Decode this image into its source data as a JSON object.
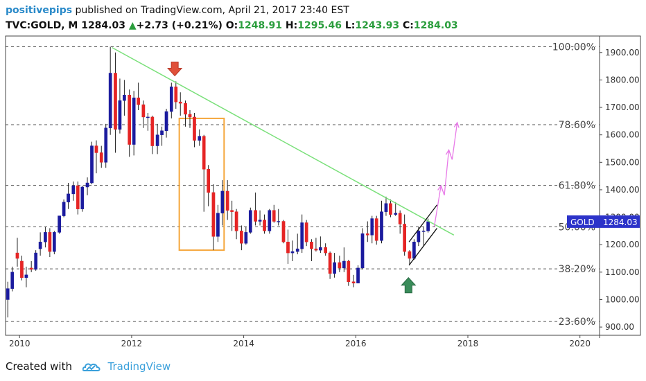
{
  "header": {
    "author": "positivepips",
    "published_text": "published on TradingView.com, April 21, 2017 23:40 EST",
    "symbol": "TVC:GOLD, M",
    "last": "1284.03",
    "change": "+2.73 (+0.21%)",
    "open_label": "O:",
    "open_value": "1248.91",
    "high_label": "H:",
    "high_value": "1295.46",
    "low_label": "L:",
    "low_value": "1243.93",
    "close_label": "C:",
    "close_value": "1284.03"
  },
  "footer": {
    "created_with": "Created with",
    "brand": "TradingView"
  },
  "colors": {
    "up": "#1b1b9e",
    "down": "#e52424",
    "trend": "#7ae07a",
    "box": "#f5a63a",
    "arrow_down": "#e0503a",
    "arrow_up": "#3a8c5a",
    "projection": "#e87ae8",
    "price_tag": "#2c33c9"
  },
  "chart_data": {
    "type": "candlestick",
    "x_start_year": 2009.75,
    "x_tick_labels": [
      "2010",
      "2012",
      "2014",
      "2016",
      "2018",
      "2020"
    ],
    "x_ticks": [
      2010,
      2012,
      2014,
      2016,
      2018,
      2020
    ],
    "y_tick_labels": [
      "900.00",
      "1000.00",
      "1100.00",
      "1200.00",
      "1300.00",
      "1400.00",
      "1500.00",
      "1600.00",
      "1700.00",
      "1800.00",
      "1900.00"
    ],
    "y_ticks": [
      900,
      1000,
      1100,
      1200,
      1300,
      1400,
      1500,
      1600,
      1700,
      1800,
      1900
    ],
    "ylim": [
      870,
      1960
    ],
    "xlim": [
      2009.75,
      2020.35
    ],
    "price_tag": {
      "label": "GOLD",
      "value": "1284.03",
      "price": 1284.03
    },
    "fib_levels": [
      {
        "label": "100.00%",
        "price": 1921
      },
      {
        "label": "78.60%",
        "price": 1637
      },
      {
        "label": "61.80%",
        "price": 1416
      },
      {
        "label": "50.00%",
        "price": 1265
      },
      {
        "label": "38.20%",
        "price": 1112
      },
      {
        "label": "23.60%",
        "price": 920
      }
    ],
    "candles": [
      {
        "t": 2009.79,
        "o": 1000,
        "h": 1065,
        "l": 935,
        "c": 1040
      },
      {
        "t": 2009.87,
        "o": 1040,
        "h": 1120,
        "l": 1030,
        "c": 1100
      },
      {
        "t": 2009.96,
        "o": 1170,
        "h": 1225,
        "l": 1120,
        "c": 1150
      },
      {
        "t": 2010.04,
        "o": 1140,
        "h": 1160,
        "l": 1070,
        "c": 1080
      },
      {
        "t": 2010.12,
        "o": 1080,
        "h": 1120,
        "l": 1045,
        "c": 1090
      },
      {
        "t": 2010.21,
        "o": 1115,
        "h": 1140,
        "l": 1100,
        "c": 1110
      },
      {
        "t": 2010.29,
        "o": 1110,
        "h": 1180,
        "l": 1105,
        "c": 1170
      },
      {
        "t": 2010.37,
        "o": 1185,
        "h": 1245,
        "l": 1160,
        "c": 1210
      },
      {
        "t": 2010.46,
        "o": 1210,
        "h": 1265,
        "l": 1190,
        "c": 1245
      },
      {
        "t": 2010.54,
        "o": 1245,
        "h": 1260,
        "l": 1155,
        "c": 1175
      },
      {
        "t": 2010.62,
        "o": 1175,
        "h": 1250,
        "l": 1165,
        "c": 1245
      },
      {
        "t": 2010.71,
        "o": 1245,
        "h": 1305,
        "l": 1240,
        "c": 1305
      },
      {
        "t": 2010.79,
        "o": 1305,
        "h": 1365,
        "l": 1300,
        "c": 1355
      },
      {
        "t": 2010.87,
        "o": 1355,
        "h": 1425,
        "l": 1330,
        "c": 1385
      },
      {
        "t": 2010.96,
        "o": 1385,
        "h": 1430,
        "l": 1360,
        "c": 1415
      },
      {
        "t": 2011.04,
        "o": 1415,
        "h": 1430,
        "l": 1310,
        "c": 1330
      },
      {
        "t": 2011.12,
        "o": 1330,
        "h": 1415,
        "l": 1320,
        "c": 1410
      },
      {
        "t": 2011.21,
        "o": 1410,
        "h": 1445,
        "l": 1380,
        "c": 1425
      },
      {
        "t": 2011.29,
        "o": 1425,
        "h": 1575,
        "l": 1420,
        "c": 1560
      },
      {
        "t": 2011.37,
        "o": 1560,
        "h": 1580,
        "l": 1460,
        "c": 1535
      },
      {
        "t": 2011.46,
        "o": 1535,
        "h": 1560,
        "l": 1480,
        "c": 1500
      },
      {
        "t": 2011.54,
        "o": 1500,
        "h": 1640,
        "l": 1480,
        "c": 1625
      },
      {
        "t": 2011.62,
        "o": 1625,
        "h": 1921,
        "l": 1600,
        "c": 1825
      },
      {
        "t": 2011.71,
        "o": 1825,
        "h": 1900,
        "l": 1535,
        "c": 1620
      },
      {
        "t": 2011.79,
        "o": 1620,
        "h": 1805,
        "l": 1605,
        "c": 1725
      },
      {
        "t": 2011.87,
        "o": 1725,
        "h": 1800,
        "l": 1670,
        "c": 1745
      },
      {
        "t": 2011.96,
        "o": 1745,
        "h": 1765,
        "l": 1520,
        "c": 1565
      },
      {
        "t": 2012.04,
        "o": 1565,
        "h": 1760,
        "l": 1525,
        "c": 1735
      },
      {
        "t": 2012.12,
        "o": 1735,
        "h": 1790,
        "l": 1690,
        "c": 1710
      },
      {
        "t": 2012.21,
        "o": 1710,
        "h": 1725,
        "l": 1625,
        "c": 1665
      },
      {
        "t": 2012.29,
        "o": 1665,
        "h": 1680,
        "l": 1615,
        "c": 1665
      },
      {
        "t": 2012.37,
        "o": 1665,
        "h": 1670,
        "l": 1530,
        "c": 1560
      },
      {
        "t": 2012.46,
        "o": 1560,
        "h": 1640,
        "l": 1530,
        "c": 1600
      },
      {
        "t": 2012.54,
        "o": 1600,
        "h": 1630,
        "l": 1560,
        "c": 1615
      },
      {
        "t": 2012.62,
        "o": 1615,
        "h": 1695,
        "l": 1590,
        "c": 1685
      },
      {
        "t": 2012.71,
        "o": 1685,
        "h": 1790,
        "l": 1660,
        "c": 1775
      },
      {
        "t": 2012.79,
        "o": 1775,
        "h": 1795,
        "l": 1695,
        "c": 1720
      },
      {
        "t": 2012.87,
        "o": 1720,
        "h": 1755,
        "l": 1670,
        "c": 1715
      },
      {
        "t": 2012.96,
        "o": 1715,
        "h": 1725,
        "l": 1630,
        "c": 1675
      },
      {
        "t": 2013.04,
        "o": 1675,
        "h": 1690,
        "l": 1625,
        "c": 1665
      },
      {
        "t": 2013.12,
        "o": 1665,
        "h": 1680,
        "l": 1555,
        "c": 1580
      },
      {
        "t": 2013.21,
        "o": 1580,
        "h": 1620,
        "l": 1560,
        "c": 1595
      },
      {
        "t": 2013.29,
        "o": 1595,
        "h": 1600,
        "l": 1320,
        "c": 1475
      },
      {
        "t": 2013.37,
        "o": 1475,
        "h": 1490,
        "l": 1340,
        "c": 1390
      },
      {
        "t": 2013.46,
        "o": 1390,
        "h": 1420,
        "l": 1180,
        "c": 1230
      },
      {
        "t": 2013.54,
        "o": 1230,
        "h": 1345,
        "l": 1210,
        "c": 1315
      },
      {
        "t": 2013.62,
        "o": 1315,
        "h": 1435,
        "l": 1270,
        "c": 1395
      },
      {
        "t": 2013.71,
        "o": 1395,
        "h": 1435,
        "l": 1290,
        "c": 1325
      },
      {
        "t": 2013.79,
        "o": 1325,
        "h": 1360,
        "l": 1250,
        "c": 1320
      },
      {
        "t": 2013.87,
        "o": 1320,
        "h": 1330,
        "l": 1220,
        "c": 1250
      },
      {
        "t": 2013.96,
        "o": 1250,
        "h": 1270,
        "l": 1180,
        "c": 1205
      },
      {
        "t": 2014.04,
        "o": 1205,
        "h": 1265,
        "l": 1200,
        "c": 1245
      },
      {
        "t": 2014.12,
        "o": 1245,
        "h": 1335,
        "l": 1240,
        "c": 1325
      },
      {
        "t": 2014.21,
        "o": 1325,
        "h": 1390,
        "l": 1270,
        "c": 1285
      },
      {
        "t": 2014.29,
        "o": 1285,
        "h": 1325,
        "l": 1270,
        "c": 1290
      },
      {
        "t": 2014.37,
        "o": 1290,
        "h": 1310,
        "l": 1240,
        "c": 1250
      },
      {
        "t": 2014.46,
        "o": 1250,
        "h": 1330,
        "l": 1240,
        "c": 1325
      },
      {
        "t": 2014.54,
        "o": 1325,
        "h": 1345,
        "l": 1280,
        "c": 1285
      },
      {
        "t": 2014.62,
        "o": 1285,
        "h": 1330,
        "l": 1270,
        "c": 1285
      },
      {
        "t": 2014.71,
        "o": 1285,
        "h": 1290,
        "l": 1205,
        "c": 1210
      },
      {
        "t": 2014.79,
        "o": 1210,
        "h": 1255,
        "l": 1130,
        "c": 1170
      },
      {
        "t": 2014.87,
        "o": 1170,
        "h": 1215,
        "l": 1140,
        "c": 1175
      },
      {
        "t": 2014.96,
        "o": 1175,
        "h": 1240,
        "l": 1165,
        "c": 1185
      },
      {
        "t": 2015.04,
        "o": 1185,
        "h": 1310,
        "l": 1170,
        "c": 1280
      },
      {
        "t": 2015.12,
        "o": 1280,
        "h": 1290,
        "l": 1195,
        "c": 1210
      },
      {
        "t": 2015.21,
        "o": 1210,
        "h": 1220,
        "l": 1140,
        "c": 1185
      },
      {
        "t": 2015.29,
        "o": 1185,
        "h": 1225,
        "l": 1175,
        "c": 1180
      },
      {
        "t": 2015.37,
        "o": 1180,
        "h": 1230,
        "l": 1170,
        "c": 1190
      },
      {
        "t": 2015.46,
        "o": 1190,
        "h": 1205,
        "l": 1160,
        "c": 1170
      },
      {
        "t": 2015.54,
        "o": 1170,
        "h": 1175,
        "l": 1075,
        "c": 1095
      },
      {
        "t": 2015.62,
        "o": 1095,
        "h": 1170,
        "l": 1080,
        "c": 1135
      },
      {
        "t": 2015.71,
        "o": 1135,
        "h": 1160,
        "l": 1100,
        "c": 1115
      },
      {
        "t": 2015.79,
        "o": 1115,
        "h": 1190,
        "l": 1100,
        "c": 1140
      },
      {
        "t": 2015.87,
        "o": 1140,
        "h": 1145,
        "l": 1050,
        "c": 1065
      },
      {
        "t": 2015.96,
        "o": 1065,
        "h": 1090,
        "l": 1045,
        "c": 1060
      },
      {
        "t": 2016.04,
        "o": 1060,
        "h": 1125,
        "l": 1060,
        "c": 1115
      },
      {
        "t": 2016.12,
        "o": 1115,
        "h": 1260,
        "l": 1110,
        "c": 1240
      },
      {
        "t": 2016.21,
        "o": 1240,
        "h": 1285,
        "l": 1210,
        "c": 1235
      },
      {
        "t": 2016.29,
        "o": 1235,
        "h": 1305,
        "l": 1205,
        "c": 1295
      },
      {
        "t": 2016.37,
        "o": 1295,
        "h": 1305,
        "l": 1200,
        "c": 1215
      },
      {
        "t": 2016.46,
        "o": 1215,
        "h": 1360,
        "l": 1205,
        "c": 1320
      },
      {
        "t": 2016.54,
        "o": 1320,
        "h": 1375,
        "l": 1305,
        "c": 1350
      },
      {
        "t": 2016.62,
        "o": 1350,
        "h": 1365,
        "l": 1300,
        "c": 1310
      },
      {
        "t": 2016.71,
        "o": 1310,
        "h": 1355,
        "l": 1305,
        "c": 1315
      },
      {
        "t": 2016.79,
        "o": 1315,
        "h": 1325,
        "l": 1240,
        "c": 1275
      },
      {
        "t": 2016.87,
        "o": 1275,
        "h": 1310,
        "l": 1160,
        "c": 1175
      },
      {
        "t": 2016.96,
        "o": 1175,
        "h": 1180,
        "l": 1125,
        "c": 1150
      },
      {
        "t": 2017.04,
        "o": 1150,
        "h": 1220,
        "l": 1145,
        "c": 1210
      },
      {
        "t": 2017.12,
        "o": 1210,
        "h": 1265,
        "l": 1195,
        "c": 1250
      },
      {
        "t": 2017.21,
        "o": 1250,
        "h": 1265,
        "l": 1195,
        "c": 1250
      },
      {
        "t": 2017.29,
        "o": 1250,
        "h": 1295,
        "l": 1244,
        "c": 1284
      }
    ],
    "trendline": [
      {
        "t": 2011.65,
        "price": 1918
      },
      {
        "t": 2017.75,
        "price": 1235
      }
    ],
    "range_box": {
      "t0": 2012.85,
      "t1": 2013.65,
      "p0": 1180,
      "p1": 1660
    },
    "channel": {
      "lower": [
        {
          "t": 2016.95,
          "price": 1125
        },
        {
          "t": 2017.45,
          "price": 1260
        }
      ],
      "upper": [
        {
          "t": 2016.95,
          "price": 1210
        },
        {
          "t": 2017.45,
          "price": 1345
        }
      ]
    },
    "projection_path": [
      {
        "t": 2017.4,
        "price": 1265
      },
      {
        "t": 2017.52,
        "price": 1415
      },
      {
        "t": 2017.58,
        "price": 1380
      },
      {
        "t": 2017.66,
        "price": 1545
      },
      {
        "t": 2017.72,
        "price": 1510
      },
      {
        "t": 2017.81,
        "price": 1645
      }
    ],
    "arrows": [
      {
        "kind": "down",
        "t": 2012.77,
        "price": 1815
      },
      {
        "kind": "up",
        "t": 2016.94,
        "price": 1080
      }
    ]
  }
}
